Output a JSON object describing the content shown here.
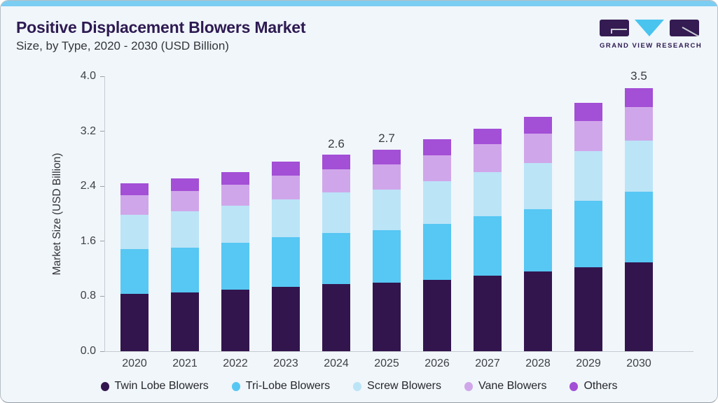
{
  "header": {
    "title": "Positive Displacement Blowers Market",
    "subtitle": "Size, by Type, 2020 - 2030 (USD Billion)",
    "logo_text": "GRAND VIEW RESEARCH"
  },
  "colors": {
    "top_accent_bar": "#7CCDF2",
    "card_background": "#F0F6FA",
    "title_text": "#2E1A52",
    "logo_dark": "#341B52",
    "logo_cyan": "#49C4EF",
    "axis_line": "#C5CBD1",
    "tick_text": "#3F4148"
  },
  "chart_data": {
    "type": "bar",
    "stacked": true,
    "title": "Positive Displacement Blowers Market",
    "subtitle": "Size, by Type, 2020 - 2030 (USD Billion)",
    "xlabel": "",
    "ylabel": "Market Size (USD Billion)",
    "ylim": [
      0.0,
      4.0
    ],
    "ytick_labels": [
      "0.0",
      "0.8",
      "1.6",
      "2.4",
      "3.2",
      "4.0"
    ],
    "grid": false,
    "legend_position": "bottom",
    "categories": [
      "2020",
      "2021",
      "2022",
      "2023",
      "2024",
      "2025",
      "2026",
      "2027",
      "2028",
      "2029",
      "2030"
    ],
    "series": [
      {
        "name": "Twin Lobe Blowers",
        "color": "#33154E",
        "values": [
          0.75,
          0.77,
          0.81,
          0.85,
          0.88,
          0.9,
          0.94,
          0.99,
          1.05,
          1.1,
          1.17
        ]
      },
      {
        "name": "Tri-Lobe Blowers",
        "color": "#57C7F3",
        "values": [
          0.59,
          0.59,
          0.62,
          0.65,
          0.67,
          0.69,
          0.74,
          0.78,
          0.82,
          0.87,
          0.93
        ]
      },
      {
        "name": "Screw Blowers",
        "color": "#BBE4F7",
        "values": [
          0.45,
          0.48,
          0.49,
          0.5,
          0.53,
          0.53,
          0.56,
          0.58,
          0.61,
          0.65,
          0.67
        ]
      },
      {
        "name": "Vane Blowers",
        "color": "#D0A6EA",
        "values": [
          0.26,
          0.27,
          0.28,
          0.31,
          0.3,
          0.33,
          0.34,
          0.37,
          0.39,
          0.4,
          0.44
        ]
      },
      {
        "name": "Others",
        "color": "#A34FD6",
        "values": [
          0.16,
          0.17,
          0.17,
          0.18,
          0.19,
          0.19,
          0.21,
          0.2,
          0.22,
          0.24,
          0.25
        ]
      }
    ],
    "bar_labels": {
      "2024": "2.6",
      "2025": "2.7",
      "2030": "3.5"
    }
  }
}
